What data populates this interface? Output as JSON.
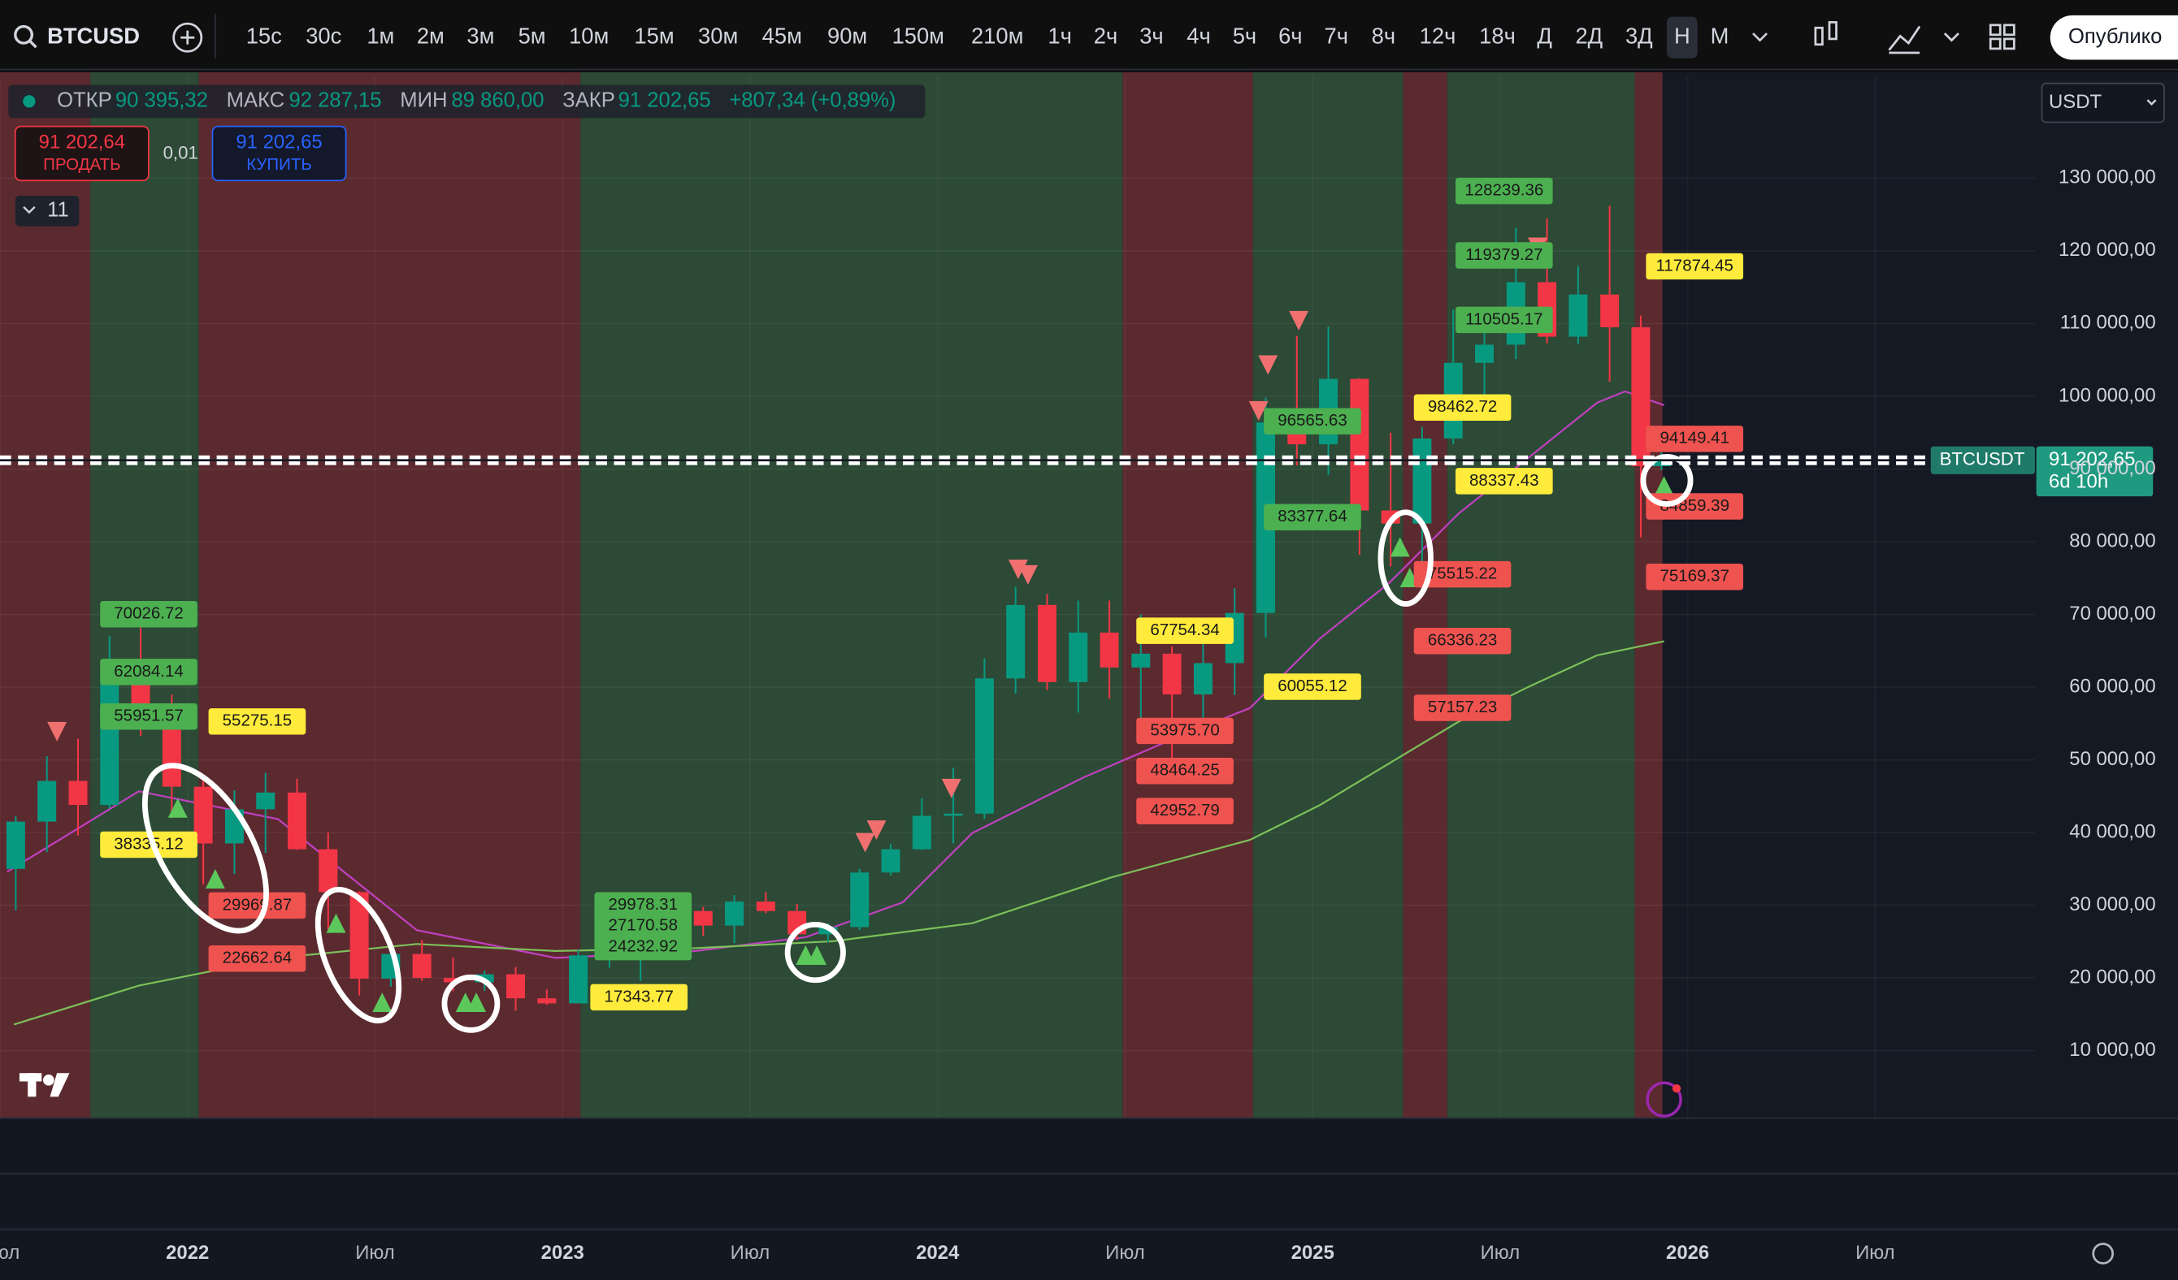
{
  "toolbar": {
    "symbol": "BTCUSD",
    "intervals": [
      "15с",
      "30с",
      "1м",
      "2м",
      "3м",
      "5м",
      "10м",
      "15м",
      "30м",
      "45м",
      "90м",
      "150м",
      "210м",
      "1ч",
      "2ч",
      "3ч",
      "4ч",
      "5ч",
      "6ч",
      "7ч",
      "8ч",
      "12ч",
      "18ч",
      "Д",
      "2Д",
      "3Д",
      "Н",
      "М"
    ],
    "active_interval_index": 26,
    "publish": "Опублико"
  },
  "legend": {
    "open_label": "ОТКР",
    "open": "90 395,32",
    "high_label": "МАКС",
    "high": "92 287,15",
    "low_label": "МИН",
    "low": "89 860,00",
    "close_label": "ЗАКР",
    "close": "91 202,65",
    "change": "+807,34 (+0,89%)"
  },
  "trade": {
    "sell_price": "91 202,64",
    "sell": "ПРОДАТЬ",
    "spread": "0,01",
    "buy_price": "91 202,65",
    "buy": "КУПИТЬ"
  },
  "indicators_count": "11",
  "currency": "USDT",
  "chart_data": {
    "type": "candlestick",
    "up_color": "#089981",
    "down_color": "#f23645",
    "xlim": [
      2021.5,
      2026.926
    ],
    "ylim": [
      800,
      144000
    ],
    "grid": true,
    "xticks": [
      {
        "value": 2021.5,
        "label": "Июл"
      },
      2022,
      {
        "value": 2022.5,
        "label": "Июл"
      },
      2023,
      {
        "value": 2023.5,
        "label": "Июл"
      },
      2024,
      {
        "value": 2024.5,
        "label": "Июл"
      },
      2025,
      {
        "value": 2025.5,
        "label": "Июл"
      },
      2026,
      {
        "value": 2026.5,
        "label": "Июл"
      }
    ],
    "yticks": [
      {
        "value": 10000,
        "label": "10 000,00"
      },
      {
        "value": 20000,
        "label": "20 000,00"
      },
      {
        "value": 30000,
        "label": "30 000,00"
      },
      {
        "value": 40000,
        "label": "40 000,00"
      },
      {
        "value": 50000,
        "label": "50 000,00"
      },
      {
        "value": 60000,
        "label": "60 000,00"
      },
      {
        "value": 70000,
        "label": "70 000,00"
      },
      {
        "value": 80000,
        "label": "80 000,00"
      },
      {
        "value": 90000,
        "label": "90 000,00"
      },
      {
        "value": 100000,
        "label": "100 000,00"
      },
      {
        "value": 110000,
        "label": "110 000,00"
      },
      {
        "value": 120000,
        "label": "120 000,00"
      },
      {
        "value": 130000,
        "label": "130 000,00"
      }
    ],
    "x": [
      2021.542,
      2021.625,
      2021.708,
      2021.792,
      2021.875,
      2021.958,
      2022.042,
      2022.125,
      2022.208,
      2022.292,
      2022.375,
      2022.458,
      2022.542,
      2022.625,
      2022.708,
      2022.792,
      2022.875,
      2022.958,
      2023.042,
      2023.125,
      2023.208,
      2023.292,
      2023.375,
      2023.458,
      2023.542,
      2023.625,
      2023.708,
      2023.792,
      2023.875,
      2023.958,
      2024.042,
      2024.125,
      2024.208,
      2024.292,
      2024.375,
      2024.458,
      2024.542,
      2024.625,
      2024.708,
      2024.792,
      2024.875,
      2024.958,
      2025.042,
      2025.125,
      2025.208,
      2025.292,
      2025.375,
      2025.458,
      2025.542,
      2025.625,
      2025.708,
      2025.792,
      2025.875,
      2025.93
    ],
    "open": [
      35000,
      41500,
      47100,
      43800,
      61300,
      57000,
      46300,
      38500,
      43200,
      45500,
      37700,
      31800,
      19900,
      23300,
      20000,
      19400,
      20500,
      17200,
      16500,
      23100,
      23100,
      28500,
      29200,
      27200,
      30500,
      29200,
      26000,
      27000,
      34500,
      37700,
      42300,
      42600,
      61200,
      71300,
      60700,
      67500,
      62700,
      64600,
      59000,
      63300,
      70200,
      96400,
      93400,
      102400,
      84300,
      82500,
      94200,
      104600,
      107100,
      115700,
      108200,
      114000,
      109500,
      90395.32
    ],
    "high": [
      42300,
      50500,
      52900,
      67000,
      69000,
      59000,
      48000,
      45800,
      48200,
      47400,
      40000,
      31900,
      24700,
      25200,
      22800,
      21000,
      21500,
      18400,
      23900,
      25300,
      29200,
      31000,
      29800,
      31400,
      31800,
      30200,
      27500,
      35000,
      38400,
      44700,
      48900,
      64000,
      73800,
      72800,
      71900,
      71900,
      70000,
      65600,
      66500,
      73600,
      99800,
      108300,
      109600,
      102500,
      95000,
      95800,
      111900,
      110600,
      123200,
      124500,
      117900,
      126200,
      111100,
      92287.15
    ],
    "low": [
      29300,
      37300,
      39600,
      43300,
      53300,
      42000,
      32900,
      34300,
      37200,
      37600,
      26700,
      17600,
      18800,
      19600,
      18200,
      18200,
      15500,
      16300,
      16500,
      21400,
      19600,
      27000,
      25800,
      24800,
      28900,
      25200,
      24900,
      26600,
      34100,
      37600,
      38500,
      41900,
      59100,
      59600,
      56500,
      58400,
      53500,
      49000,
      52500,
      58900,
      66800,
      90500,
      89200,
      78200,
      76600,
      74500,
      93400,
      98200,
      105100,
      107300,
      107200,
      102000,
      80600,
      89860
    ],
    "close": [
      41500,
      47100,
      43800,
      61300,
      57000,
      46300,
      38500,
      43200,
      45500,
      37700,
      31800,
      19900,
      23300,
      20000,
      19400,
      20500,
      17200,
      16500,
      23100,
      23100,
      28500,
      29200,
      27200,
      30500,
      29200,
      26000,
      27000,
      34500,
      37700,
      42300,
      42600,
      61200,
      71300,
      60700,
      67500,
      62700,
      64600,
      59000,
      63300,
      70200,
      96400,
      93400,
      102400,
      84300,
      82500,
      94200,
      104600,
      107100,
      115700,
      108200,
      114000,
      109500,
      90400,
      91202.65
    ],
    "regimes": [
      {
        "from": 2021.5,
        "to": 2021.741,
        "color": "#5b2a2f"
      },
      {
        "from": 2021.741,
        "to": 2022.03,
        "color": "#2c4a35"
      },
      {
        "from": 2022.03,
        "to": 2023.048,
        "color": "#5b2a2f"
      },
      {
        "from": 2023.048,
        "to": 2024.493,
        "color": "#2c4a35"
      },
      {
        "from": 2024.493,
        "to": 2024.841,
        "color": "#5b2a2f"
      },
      {
        "from": 2024.841,
        "to": 2025.241,
        "color": "#2c4a35"
      },
      {
        "from": 2025.241,
        "to": 2025.359,
        "color": "#5b2a2f"
      },
      {
        "from": 2025.359,
        "to": 2025.859,
        "color": "#2c4a35"
      },
      {
        "from": 2025.859,
        "to": 2025.933,
        "color": "#5b2a2f"
      }
    ],
    "ma_lines": [
      {
        "color": "#c040c0",
        "x": [
          2021.519,
          2021.87,
          2022.241,
          2022.611,
          2022.981,
          2023.352,
          2023.648,
          2023.907,
          2024.093,
          2024.389,
          2024.648,
          2024.833,
          2025.019,
          2025.204,
          2025.389,
          2025.574,
          2025.759,
          2025.833,
          2025.937
        ],
        "values": [
          34600,
          45675,
          41850,
          26580,
          22760,
          23700,
          25600,
          30400,
          39950,
          47580,
          53300,
          57130,
          66680,
          74320,
          83860,
          91500,
          99140,
          100670,
          98760
        ]
      },
      {
        "color": "#7cc05a",
        "x": [
          2021.537,
          2021.87,
          2022.241,
          2022.611,
          2022.981,
          2023.352,
          2023.722,
          2024.093,
          2024.463,
          2024.833,
          2025.019,
          2025.204,
          2025.389,
          2025.574,
          2025.759,
          2025.937
        ],
        "values": [
          13590,
          18940,
          22760,
          24670,
          23710,
          24100,
          25050,
          27530,
          33830,
          38990,
          43760,
          49500,
          55230,
          60000,
          64390,
          66300
        ]
      }
    ],
    "buy_signals": {
      "color": "#5cc85c",
      "x": [
        2021.974,
        2022.074,
        2022.396,
        2022.519,
        2022.741,
        2022.77,
        2023.648,
        2023.678,
        2025.233,
        2025.259,
        2025.937
      ],
      "values": [
        43380,
        33640,
        27530,
        16650,
        16650,
        16650,
        23140,
        23140,
        79280,
        75080,
        87680
      ]
    },
    "sell_signals": {
      "color": "#f07070",
      "x": [
        2021.652,
        2023.807,
        2023.837,
        2024.037,
        2024.215,
        2024.241,
        2024.856,
        2024.881,
        2024.963,
        2025.6
      ],
      "values": [
        53880,
        38600,
        40330,
        46060,
        76200,
        75430,
        98000,
        104300,
        110400,
        120500
      ]
    },
    "levels": [
      {
        "value": 70026.72,
        "x": 2021.767,
        "color": "#4caf50"
      },
      {
        "value": 62084.14,
        "x": 2021.767,
        "color": "#4caf50"
      },
      {
        "value": 55951.57,
        "x": 2021.767,
        "color": "#4caf50"
      },
      {
        "value": 55275.15,
        "x": 2022.056,
        "color": "#ffeb3b"
      },
      {
        "value": 38335.12,
        "x": 2021.767,
        "color": "#ffeb3b"
      },
      {
        "value": 29969.87,
        "x": 2022.056,
        "color": "#ef5350"
      },
      {
        "value": 22662.64,
        "x": 2022.056,
        "color": "#ef5350"
      },
      {
        "value": 17343.77,
        "x": 2023.074,
        "color": "#ffeb3b"
      },
      {
        "value": 29978.31,
        "x": 2023.085,
        "color": "#4caf50"
      },
      {
        "value": 27170.58,
        "x": 2023.085,
        "color": "#4caf50"
      },
      {
        "value": 24232.92,
        "x": 2023.085,
        "color": "#4caf50"
      },
      {
        "value": 67754.34,
        "x": 2024.53,
        "color": "#ffeb3b"
      },
      {
        "value": 53975.7,
        "label": "53975.70",
        "x": 2024.53,
        "color": "#ef5350"
      },
      {
        "value": 48464.25,
        "x": 2024.53,
        "color": "#ef5350"
      },
      {
        "value": 42952.79,
        "x": 2024.53,
        "color": "#ef5350"
      },
      {
        "value": 60055.12,
        "x": 2024.87,
        "color": "#ffeb3b"
      },
      {
        "value": 83377.64,
        "x": 2024.87,
        "color": "#4caf50"
      },
      {
        "value": 96565.63,
        "x": 2024.87,
        "color": "#4caf50"
      },
      {
        "value": 128239.36,
        "x": 2025.381,
        "color": "#4caf50"
      },
      {
        "value": 119379.27,
        "x": 2025.381,
        "color": "#4caf50"
      },
      {
        "value": 110505.17,
        "x": 2025.381,
        "color": "#4caf50"
      },
      {
        "value": 98462.72,
        "x": 2025.27,
        "color": "#ffeb3b"
      },
      {
        "value": 88337.43,
        "x": 2025.381,
        "color": "#ffeb3b"
      },
      {
        "value": 75515.22,
        "x": 2025.27,
        "color": "#ef5350"
      },
      {
        "value": 66336.23,
        "x": 2025.27,
        "color": "#ef5350"
      },
      {
        "value": 57157.23,
        "x": 2025.27,
        "color": "#ef5350"
      },
      {
        "value": 117874.45,
        "x": 2025.889,
        "color": "#ffeb3b"
      },
      {
        "value": 94149.41,
        "x": 2025.889,
        "color": "#ef5350"
      },
      {
        "value": 84859.39,
        "x": 2025.889,
        "color": "#ef5350"
      },
      {
        "value": 75169.37,
        "x": 2025.889,
        "color": "#ef5350"
      }
    ],
    "symbol_tag": "BTCUSDT",
    "last_price": {
      "value": 91202.65,
      "label": "91 202,65"
    },
    "countdown": "6d 10h"
  }
}
